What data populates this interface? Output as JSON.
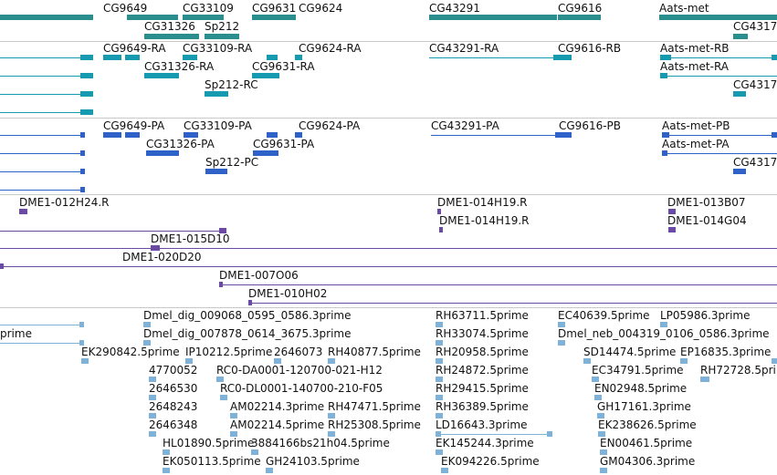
{
  "colors": {
    "gene": "#2a8e8e",
    "rna": "#159ab0",
    "protein": "#2f62c9",
    "clone": "#6a4aa3",
    "est": "#7fb2d9",
    "divider": "#c9c9c9"
  },
  "genes": {
    "features": [
      {
        "label": "CG9649"
      },
      {
        "label": "CG33109"
      },
      {
        "label": "CG9631"
      },
      {
        "label": "CG9624"
      },
      {
        "label": "CG43291"
      },
      {
        "label": "CG9616"
      },
      {
        "label": "Aats-met"
      },
      {
        "label": "CG31326"
      },
      {
        "label": "Sp212"
      },
      {
        "label": "CG4317"
      }
    ]
  },
  "transcripts": {
    "features": [
      {
        "label": "CG9649-RA"
      },
      {
        "label": "CG33109-RA"
      },
      {
        "label": "CG9624-RA"
      },
      {
        "label": "CG43291-RA"
      },
      {
        "label": "CG9616-RB"
      },
      {
        "label": "Aats-met-RB"
      },
      {
        "label": "CG31326-RA"
      },
      {
        "label": "CG9631-RA"
      },
      {
        "label": "Aats-met-RA"
      },
      {
        "label": "Sp212-RC"
      },
      {
        "label": "CG4317"
      }
    ]
  },
  "proteins": {
    "features": [
      {
        "label": "CG9649-PA"
      },
      {
        "label": "CG33109-PA"
      },
      {
        "label": "CG9624-PA"
      },
      {
        "label": "CG43291-PA"
      },
      {
        "label": "CG9616-PB"
      },
      {
        "label": "Aats-met-PB"
      },
      {
        "label": "CG31326-PA"
      },
      {
        "label": "CG9631-PA"
      },
      {
        "label": "Aats-met-PA"
      },
      {
        "label": "Sp212-PC"
      },
      {
        "label": "CG4317"
      }
    ]
  },
  "clones": {
    "features": [
      {
        "label": "DME1-012H24.R"
      },
      {
        "label": "DME1-014H19.R"
      },
      {
        "label": "DME1-013B07"
      },
      {
        "label": "DME1-014H19.R"
      },
      {
        "label": "DME1-014G04"
      },
      {
        "label": "DME1-015D10"
      },
      {
        "label": "DME1-020D20"
      },
      {
        "label": "DME1-007O06"
      },
      {
        "label": "DME1-010H02"
      }
    ]
  },
  "ests": {
    "features": [
      {
        "label": "Dmel_dig_009068_0595_0586.3prime"
      },
      {
        "label": "RH63711.5prime"
      },
      {
        "label": "EC40639.5prime"
      },
      {
        "label": "LP05986.3prime"
      },
      {
        "label": "prime"
      },
      {
        "label": "Dmel_dig_007878_0614_3675.3prime"
      },
      {
        "label": "RH33074.5prime"
      },
      {
        "label": "Dmel_neb_004319_0106_0586.3prime"
      },
      {
        "label": "EK290842.5prime"
      },
      {
        "label": "IP10212.5prime"
      },
      {
        "label": "2646073"
      },
      {
        "label": "RH40877.5prime"
      },
      {
        "label": "RH20958.5prime"
      },
      {
        "label": "SD14474.5prime"
      },
      {
        "label": "EP16835.3prime"
      },
      {
        "label": "4770052"
      },
      {
        "label": "RC0-DA0001-120700-021-H12"
      },
      {
        "label": "RH24872.5prime"
      },
      {
        "label": "EC34791.5prime"
      },
      {
        "label": "RH72728.5prime"
      },
      {
        "label": "2646530"
      },
      {
        "label": "RC0-DL0001-140700-210-F05"
      },
      {
        "label": "RH29415.5prime"
      },
      {
        "label": "EN02948.5prime"
      },
      {
        "label": "2648243"
      },
      {
        "label": "AM02214.3prime"
      },
      {
        "label": "RH47471.5prime"
      },
      {
        "label": "RH36389.5prime"
      },
      {
        "label": "GH17161.3prime"
      },
      {
        "label": "2646348"
      },
      {
        "label": "AM02214.5prime"
      },
      {
        "label": "RH25308.5prime"
      },
      {
        "label": "LD16643.3prime"
      },
      {
        "label": "EK238626.5prime"
      },
      {
        "label": "HL01890.5prime"
      },
      {
        "label": "3884166bs21h04.5prime"
      },
      {
        "label": "EK145244.3prime"
      },
      {
        "label": "EN00461.5prime"
      },
      {
        "label": "EK050113.5prime"
      },
      {
        "label": "GH24103.5prime"
      },
      {
        "label": "EK094226.5prime"
      },
      {
        "label": "GM04306.3prime"
      }
    ]
  }
}
